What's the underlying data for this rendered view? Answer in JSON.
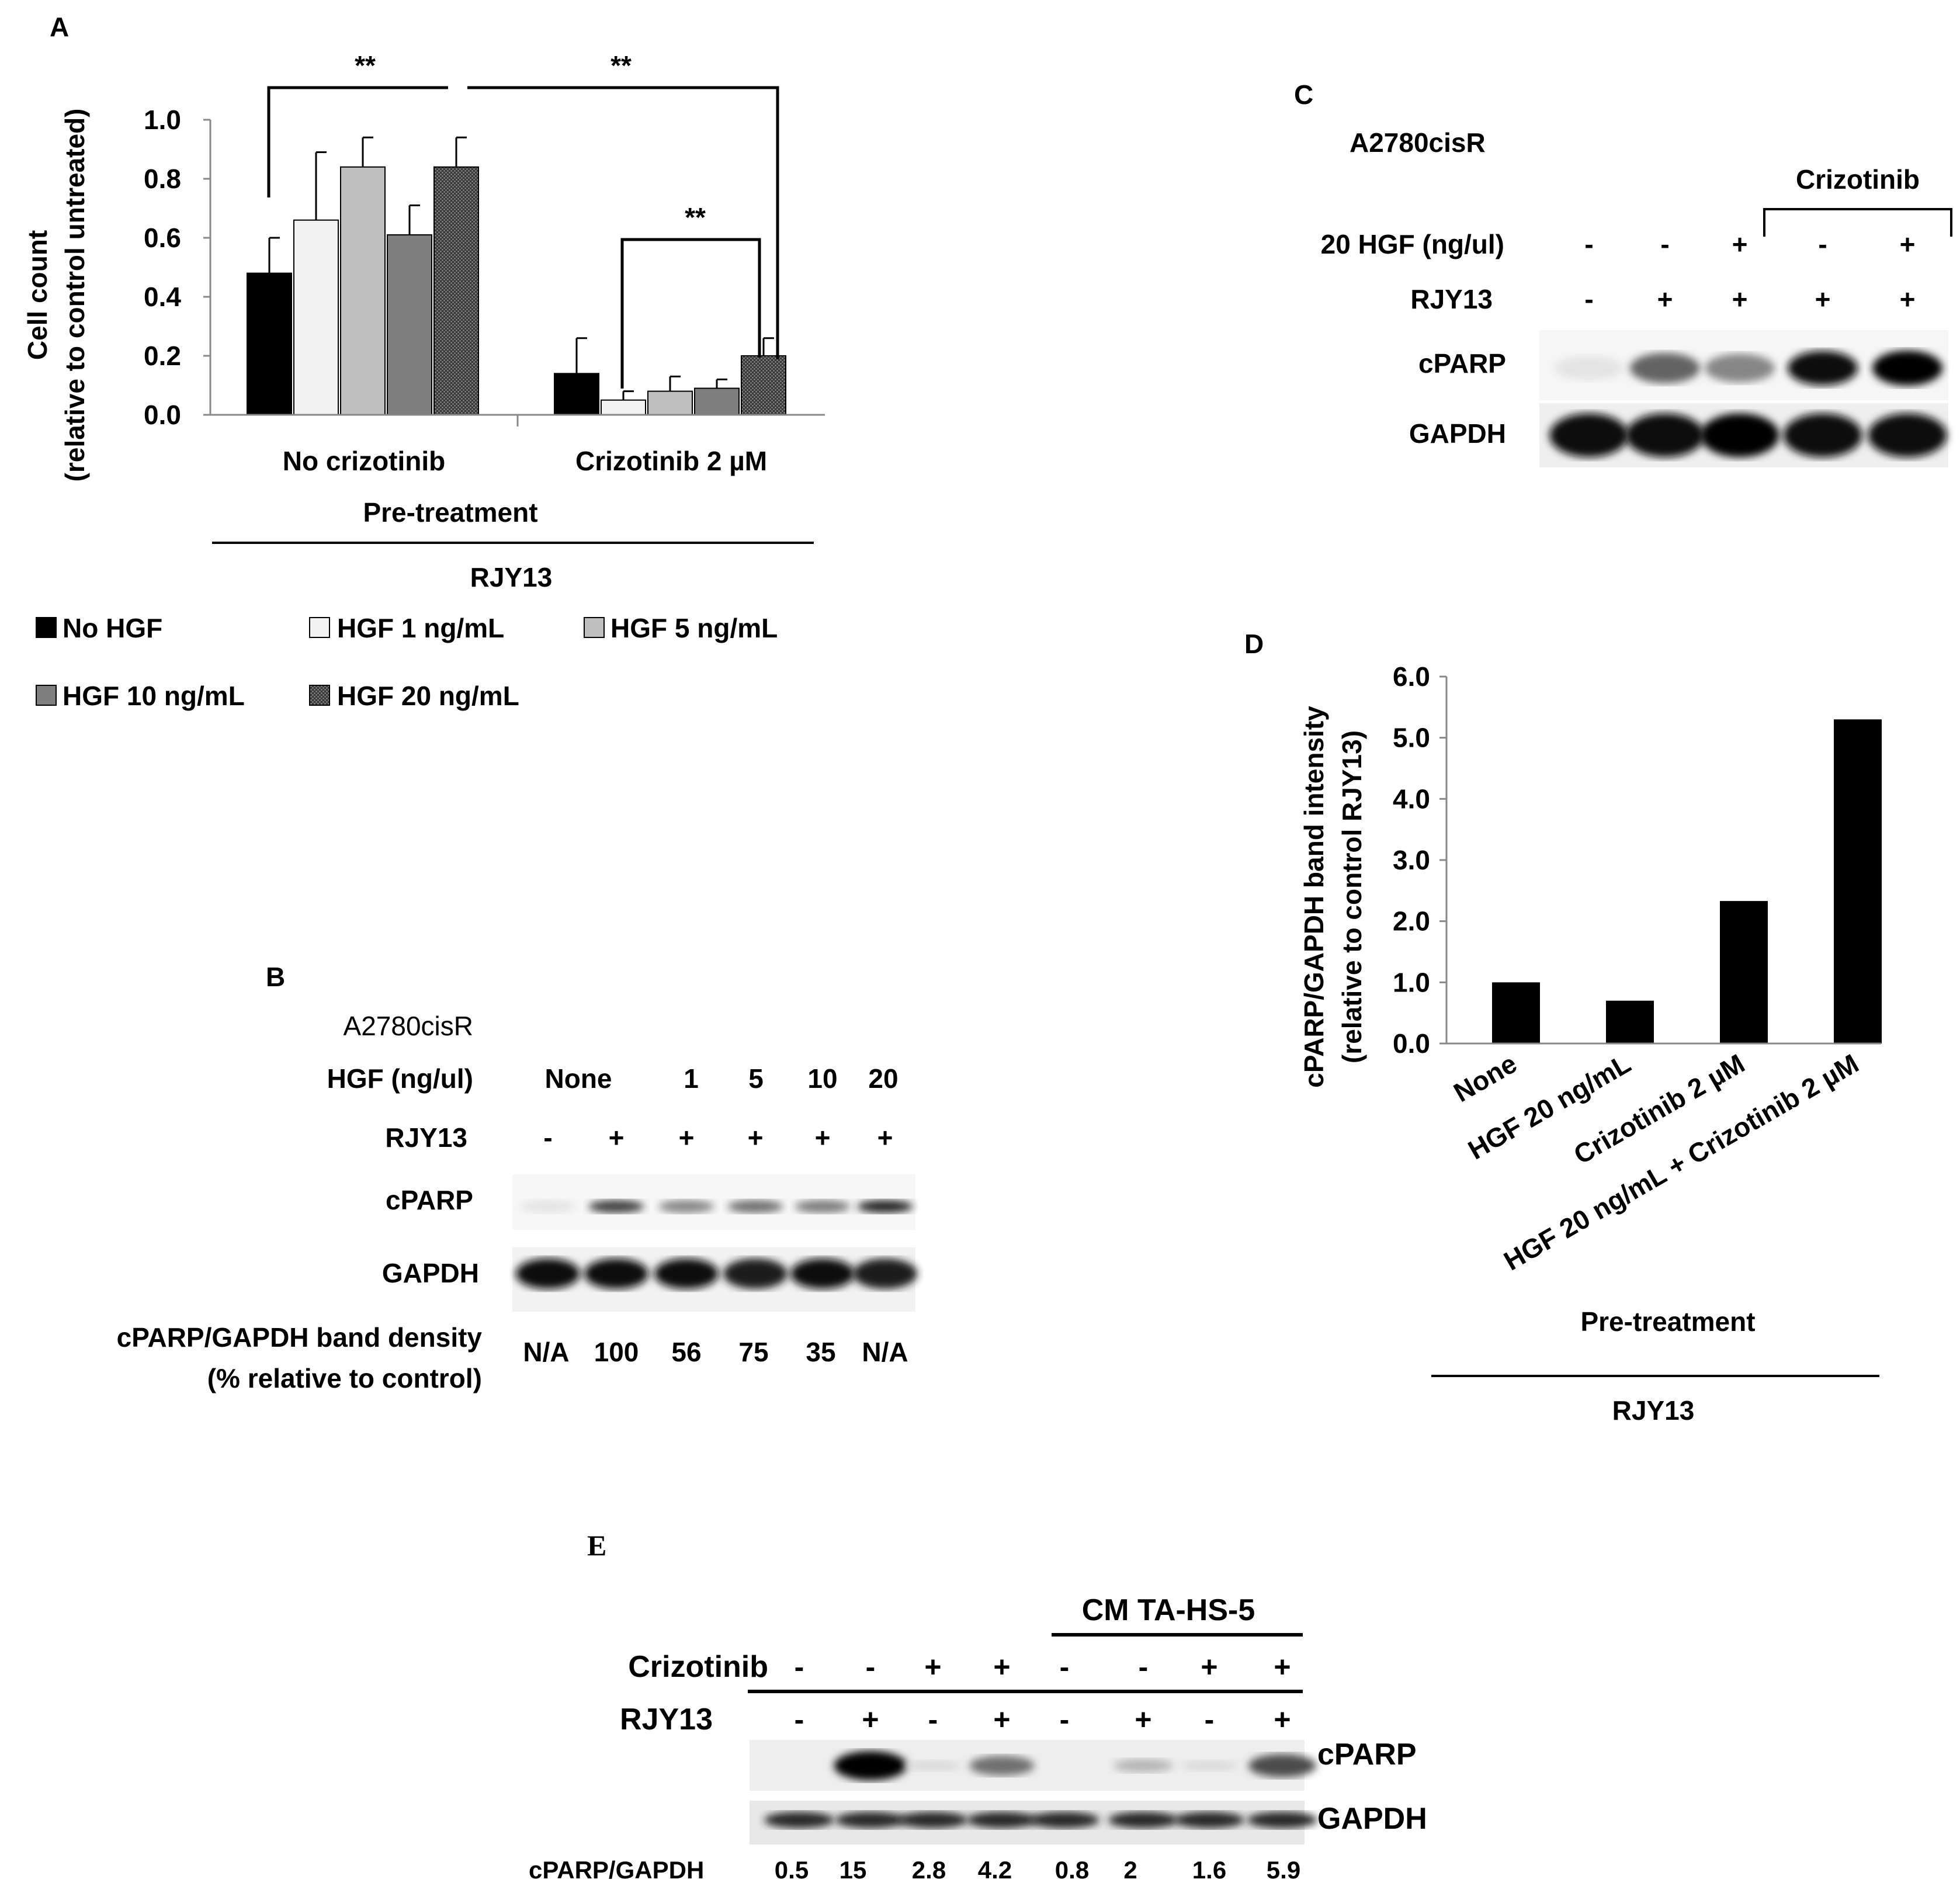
{
  "panels": {
    "A": "A",
    "B": "B",
    "C": "C",
    "D": "D",
    "E": "E"
  },
  "chart_data": [
    {
      "id": "A",
      "type": "bar",
      "ylabel_line1": "Cell count",
      "ylabel_line2": "(relative to control untreated)",
      "ylim": [
        0,
        1.0
      ],
      "ytick_labels": [
        "0.0",
        "0.2",
        "0.4",
        "0.6",
        "0.8",
        "1.0"
      ],
      "categories": [
        "No crizotinib",
        "Crizotinib 2 µM"
      ],
      "xgroup_label": "Pre-treatment",
      "xgroup_label2": "RJY13",
      "series": [
        {
          "name": "No HGF",
          "values": [
            0.48,
            0.14
          ],
          "errors": [
            0.12,
            0.12
          ],
          "color": "#000000"
        },
        {
          "name": "HGF 1 ng/mL",
          "values": [
            0.66,
            0.05
          ],
          "errors": [
            0.23,
            0.03
          ],
          "color": "#f2f2f2"
        },
        {
          "name": "HGF 5 ng/mL",
          "values": [
            0.84,
            0.08
          ],
          "errors": [
            0.1,
            0.05
          ],
          "color": "#bfbfbf"
        },
        {
          "name": "HGF 10 ng/mL",
          "values": [
            0.61,
            0.09
          ],
          "errors": [
            0.1,
            0.03
          ],
          "color": "#7f7f7f"
        },
        {
          "name": "HGF 20 ng/mL",
          "values": [
            0.84,
            0.2
          ],
          "errors": [
            0.1,
            0.06
          ],
          "color": "#404040"
        }
      ],
      "significance": [
        "**",
        "**",
        "**"
      ]
    },
    {
      "id": "D",
      "type": "bar",
      "ylabel_line1": "cPARP/GAPDH band intensity",
      "ylabel_line2": "(relative to control RJY13)",
      "ylim": [
        0,
        6.0
      ],
      "ytick_labels": [
        "0.0",
        "1.0",
        "2.0",
        "3.0",
        "4.0",
        "5.0",
        "6.0"
      ],
      "categories": [
        "None",
        "HGF 20 ng/mL",
        "Crizotinib 2 µM",
        "HGF 20 ng/mL + Crizotinib 2 µM"
      ],
      "values": [
        1.0,
        0.7,
        2.33,
        5.3
      ],
      "color": "#000000",
      "xgroup_label": "Pre-treatment",
      "xgroup_label2": "RJY13"
    }
  ],
  "panelB": {
    "cell_line": "A2780cisR",
    "hgf_label": "HGF (ng/ul)",
    "hgf_values": [
      "None",
      "1",
      "5",
      "10",
      "20"
    ],
    "rjy_label": "RJY13",
    "rjy_values": [
      "-",
      "+",
      "+",
      "+",
      "+",
      "+"
    ],
    "bands": [
      "cPARP",
      "GAPDH"
    ],
    "density_label1": "cPARP/GAPDH band density",
    "density_label2": "(% relative to control)",
    "density_values": [
      "N/A",
      "100",
      "56",
      "75",
      "35",
      "N/A"
    ],
    "cparp_intensity": [
      0.05,
      0.75,
      0.45,
      0.55,
      0.5,
      0.85
    ],
    "gapdh_intensity": [
      0.95,
      0.95,
      0.95,
      0.9,
      0.95,
      0.9
    ]
  },
  "panelC": {
    "cell_line": "A2780cisR",
    "bracket_label": "Crizotinib",
    "hgf_label": "20 HGF (ng/ul)",
    "hgf_values": [
      "-",
      "-",
      "+",
      "-",
      "+"
    ],
    "rjy_label": "RJY13",
    "rjy_values": [
      "-",
      "+",
      "+",
      "+",
      "+"
    ],
    "bands": [
      "cPARP",
      "GAPDH"
    ],
    "cparp_intensity": [
      0.05,
      0.6,
      0.45,
      0.95,
      1.0
    ],
    "gapdh_intensity": [
      0.95,
      0.95,
      1.0,
      0.95,
      0.95
    ]
  },
  "panelE": {
    "bracket_label": "CM TA-HS-5",
    "crizotinib_label": "Crizotinib",
    "crizotinib_values": [
      "-",
      "-",
      "+",
      "+",
      "-",
      "-",
      "+",
      "+"
    ],
    "rjy_label": "RJY13",
    "rjy_values": [
      "-",
      "+",
      "-",
      "+",
      "-",
      "+",
      "-",
      "+"
    ],
    "bands": [
      "cPARP",
      "GAPDH"
    ],
    "ratio_label": "cPARP/GAPDH",
    "ratio_values": [
      "0.5",
      "15",
      "2.8",
      "4.2",
      "0.8",
      "2",
      "1.6",
      "5.9"
    ],
    "cparp_intensity": [
      0.0,
      1.0,
      0.1,
      0.55,
      0.0,
      0.25,
      0.1,
      0.7
    ],
    "gapdh_intensity": [
      0.85,
      0.85,
      0.85,
      0.85,
      0.85,
      0.85,
      0.85,
      0.85
    ]
  }
}
